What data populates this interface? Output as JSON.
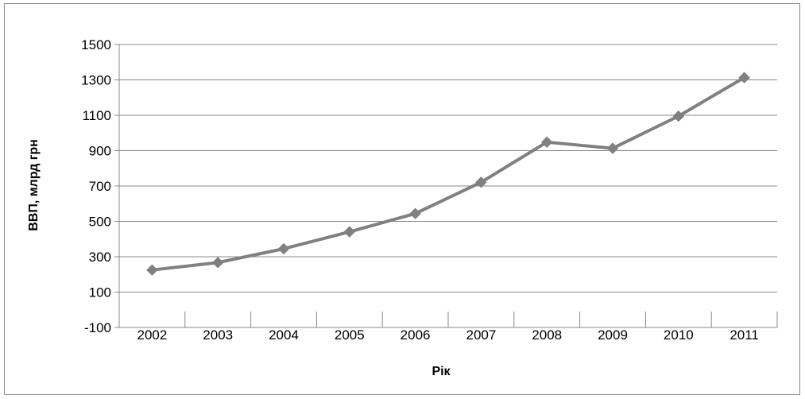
{
  "chart_data": {
    "type": "line",
    "xlabel": "Рік",
    "ylabel": "ВВП, млрд грн",
    "ylim": [
      -100,
      1500
    ],
    "y_ticks": [
      -100,
      100,
      300,
      500,
      700,
      900,
      1100,
      1300,
      1500
    ],
    "categories": [
      "2002",
      "2003",
      "2004",
      "2005",
      "2006",
      "2007",
      "2008",
      "2009",
      "2010",
      "2011"
    ],
    "series": [
      {
        "values": [
          225,
          267,
          345,
          441,
          544,
          721,
          948,
          913,
          1095,
          1313
        ],
        "color": "#808080"
      }
    ],
    "grid": true,
    "legend": "none"
  }
}
